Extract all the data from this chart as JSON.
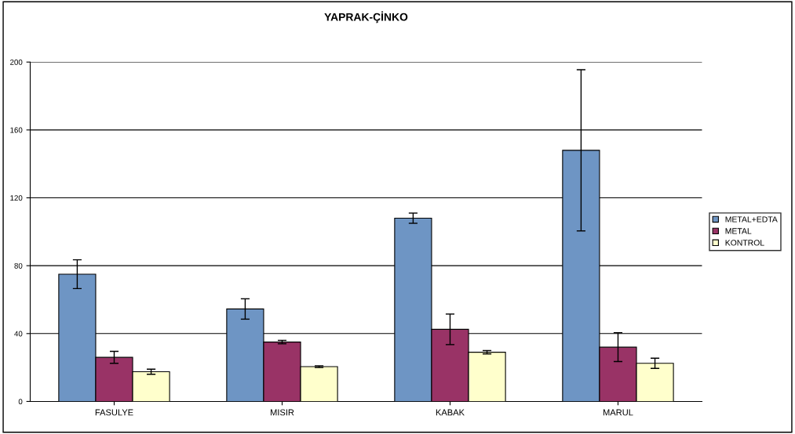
{
  "chart_data": {
    "type": "bar",
    "title": "YAPRAK-ÇİNKO",
    "categories": [
      "FASULYE",
      "MISIR",
      "KABAK",
      "MARUL"
    ],
    "series": [
      {
        "name": "METAL+EDTA",
        "color": "#6e95c4",
        "values": [
          75,
          54.5,
          108,
          148
        ],
        "errors": [
          8.5,
          6,
          3,
          47.5
        ]
      },
      {
        "name": "METAL",
        "color": "#993366",
        "values": [
          26,
          35,
          42.5,
          32
        ],
        "errors": [
          3.5,
          1,
          9,
          8.5
        ]
      },
      {
        "name": "KONTROL",
        "color": "#ffffcc",
        "values": [
          17.5,
          20.5,
          29,
          22.5
        ],
        "errors": [
          1.5,
          0.5,
          1,
          3
        ]
      }
    ],
    "ylim": [
      0,
      200
    ],
    "yticks": [
      0,
      40,
      80,
      120,
      160,
      200
    ],
    "grid": "y",
    "legend": "right"
  }
}
